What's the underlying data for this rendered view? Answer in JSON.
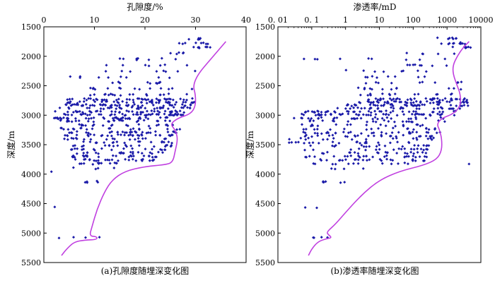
{
  "colors": {
    "points": "#1a1aa8",
    "curve": "#c040e0",
    "axis": "#000000"
  },
  "chart_data": [
    {
      "type": "scatter",
      "title": "孔隙度/%",
      "ylabel": "深度/m",
      "caption": "(a)孔隙度随埋深变化图",
      "x_scale": "linear",
      "xlim": [
        0,
        40
      ],
      "ylim": [
        1500,
        5500
      ],
      "y_inverted": true,
      "x_ticks": [
        0,
        10,
        20,
        30,
        40
      ],
      "x_tick_labels": [
        "0",
        "10",
        "20",
        "30",
        "40"
      ],
      "y_ticks": [
        1500,
        2000,
        2500,
        3000,
        3500,
        4000,
        4500,
        5000,
        5500
      ],
      "y_tick_labels": [
        "1500",
        "2000",
        "2500",
        "3000",
        "3500",
        "4000",
        "4500",
        "5000",
        "5500"
      ],
      "grid": false,
      "point_groups": [
        {
          "depth": 1700,
          "x_min": 28,
          "x_max": 32,
          "count": 6
        },
        {
          "depth": 1780,
          "x_min": 26,
          "x_max": 33,
          "count": 8
        },
        {
          "depth": 1850,
          "x_min": 29,
          "x_max": 33,
          "count": 8
        },
        {
          "depth": 1950,
          "x_min": 22,
          "x_max": 30,
          "count": 6
        },
        {
          "depth": 2050,
          "x_min": 10,
          "x_max": 30,
          "count": 8
        },
        {
          "depth": 2150,
          "x_min": 12,
          "x_max": 30,
          "count": 7
        },
        {
          "depth": 2250,
          "x_min": 12,
          "x_max": 30,
          "count": 8
        },
        {
          "depth": 2350,
          "x_min": 5,
          "x_max": 30,
          "count": 9
        },
        {
          "depth": 2450,
          "x_min": 8,
          "x_max": 30,
          "count": 10
        },
        {
          "depth": 2550,
          "x_min": 7,
          "x_max": 30,
          "count": 14
        },
        {
          "depth": 2650,
          "x_min": 7,
          "x_max": 30,
          "count": 18
        },
        {
          "depth": 2730,
          "x_min": 4,
          "x_max": 30,
          "count": 40
        },
        {
          "depth": 2780,
          "x_min": 4,
          "x_max": 30,
          "count": 40
        },
        {
          "depth": 2830,
          "x_min": 4,
          "x_max": 30,
          "count": 45
        },
        {
          "depth": 2880,
          "x_min": 3,
          "x_max": 30,
          "count": 35
        },
        {
          "depth": 2940,
          "x_min": 2,
          "x_max": 28,
          "count": 40
        },
        {
          "depth": 2990,
          "x_min": 2,
          "x_max": 28,
          "count": 45
        },
        {
          "depth": 3050,
          "x_min": 2,
          "x_max": 27,
          "count": 40
        },
        {
          "depth": 3100,
          "x_min": 3,
          "x_max": 26,
          "count": 25
        },
        {
          "depth": 3170,
          "x_min": 3,
          "x_max": 26,
          "count": 20
        },
        {
          "depth": 3230,
          "x_min": 3,
          "x_max": 27,
          "count": 20
        },
        {
          "depth": 3290,
          "x_min": 4,
          "x_max": 27,
          "count": 30
        },
        {
          "depth": 3340,
          "x_min": 4,
          "x_max": 27,
          "count": 30
        },
        {
          "depth": 3400,
          "x_min": 4,
          "x_max": 26,
          "count": 18
        },
        {
          "depth": 3460,
          "x_min": 4,
          "x_max": 26,
          "count": 18
        },
        {
          "depth": 3520,
          "x_min": 4,
          "x_max": 26,
          "count": 20
        },
        {
          "depth": 3580,
          "x_min": 5,
          "x_max": 25,
          "count": 18
        },
        {
          "depth": 3640,
          "x_min": 5,
          "x_max": 25,
          "count": 20
        },
        {
          "depth": 3700,
          "x_min": 5,
          "x_max": 24,
          "count": 25
        },
        {
          "depth": 3760,
          "x_min": 6,
          "x_max": 22,
          "count": 25
        },
        {
          "depth": 3820,
          "x_min": 6,
          "x_max": 18,
          "count": 12
        },
        {
          "depth": 3900,
          "x_min": 4,
          "x_max": 14,
          "count": 4
        },
        {
          "depth": 3970,
          "x_min": 1,
          "x_max": 2,
          "count": 1
        },
        {
          "depth": 4130,
          "x_min": 8,
          "x_max": 11,
          "count": 5
        },
        {
          "depth": 4570,
          "x_min": 2,
          "x_max": 2.3,
          "count": 1
        },
        {
          "depth": 5080,
          "x_min": 2,
          "x_max": 11,
          "count": 4
        }
      ],
      "trend_line": [
        {
          "x": 3.5,
          "y": 5380
        },
        {
          "x": 4.5,
          "y": 5270
        },
        {
          "x": 6,
          "y": 5150
        },
        {
          "x": 8,
          "y": 5120
        },
        {
          "x": 10.5,
          "y": 5110
        },
        {
          "x": 10.5,
          "y": 5060
        },
        {
          "x": 9,
          "y": 5050
        },
        {
          "x": 9.5,
          "y": 4900
        },
        {
          "x": 10.5,
          "y": 4600
        },
        {
          "x": 12,
          "y": 4300
        },
        {
          "x": 13.5,
          "y": 4100
        },
        {
          "x": 16,
          "y": 3950
        },
        {
          "x": 20,
          "y": 3870
        },
        {
          "x": 24,
          "y": 3840
        },
        {
          "x": 25.5,
          "y": 3800
        },
        {
          "x": 26,
          "y": 3600
        },
        {
          "x": 26.5,
          "y": 3400
        },
        {
          "x": 26,
          "y": 3250
        },
        {
          "x": 25,
          "y": 3150
        },
        {
          "x": 26.5,
          "y": 3050
        },
        {
          "x": 29,
          "y": 2980
        },
        {
          "x": 30,
          "y": 2850
        },
        {
          "x": 30,
          "y": 2650
        },
        {
          "x": 29.5,
          "y": 2500
        },
        {
          "x": 30.5,
          "y": 2300
        },
        {
          "x": 33,
          "y": 2050
        },
        {
          "x": 36,
          "y": 1750
        }
      ]
    },
    {
      "type": "scatter",
      "title": "渗透率/mD",
      "ylabel": "深度/m",
      "caption": "(b)渗透率随埋深变化图",
      "x_scale": "log",
      "xlim": [
        0.01,
        10000
      ],
      "ylim": [
        1500,
        5500
      ],
      "y_inverted": true,
      "x_ticks": [
        0.01,
        0.1,
        1,
        10,
        100,
        1000,
        10000
      ],
      "x_tick_labels": [
        "0. 01",
        "0. 1",
        "1",
        "10",
        "100",
        "1000",
        "10000"
      ],
      "y_ticks": [
        1500,
        2000,
        2500,
        3000,
        3500,
        4000,
        4500,
        5000,
        5500
      ],
      "y_tick_labels": [
        "1500",
        "2000",
        "2500",
        "3000",
        "3500",
        "4000",
        "4500",
        "5000",
        "5500"
      ],
      "grid": false,
      "point_groups": [
        {
          "depth": 1700,
          "x_min": 100,
          "x_max": 3000,
          "count": 7
        },
        {
          "depth": 1780,
          "x_min": 500,
          "x_max": 5000,
          "count": 10
        },
        {
          "depth": 1850,
          "x_min": 1000,
          "x_max": 5000,
          "count": 8
        },
        {
          "depth": 1950,
          "x_min": 50,
          "x_max": 2000,
          "count": 5
        },
        {
          "depth": 2050,
          "x_min": 0.05,
          "x_max": 1000,
          "count": 9
        },
        {
          "depth": 2150,
          "x_min": 3,
          "x_max": 1000,
          "count": 8
        },
        {
          "depth": 2250,
          "x_min": 1,
          "x_max": 1000,
          "count": 8
        },
        {
          "depth": 2350,
          "x_min": 0.5,
          "x_max": 1000,
          "count": 8
        },
        {
          "depth": 2450,
          "x_min": 1,
          "x_max": 3000,
          "count": 10
        },
        {
          "depth": 2550,
          "x_min": 1,
          "x_max": 3000,
          "count": 12
        },
        {
          "depth": 2650,
          "x_min": 2,
          "x_max": 3000,
          "count": 15
        },
        {
          "depth": 2730,
          "x_min": 3,
          "x_max": 5000,
          "count": 40
        },
        {
          "depth": 2780,
          "x_min": 2,
          "x_max": 5000,
          "count": 45
        },
        {
          "depth": 2830,
          "x_min": 1,
          "x_max": 5000,
          "count": 40
        },
        {
          "depth": 2880,
          "x_min": 0.5,
          "x_max": 3000,
          "count": 30
        },
        {
          "depth": 2940,
          "x_min": 0.05,
          "x_max": 2000,
          "count": 40
        },
        {
          "depth": 2990,
          "x_min": 0.05,
          "x_max": 2000,
          "count": 45
        },
        {
          "depth": 3050,
          "x_min": 0.03,
          "x_max": 1000,
          "count": 30
        },
        {
          "depth": 3100,
          "x_min": 0.05,
          "x_max": 1000,
          "count": 20
        },
        {
          "depth": 3170,
          "x_min": 0.05,
          "x_max": 700,
          "count": 18
        },
        {
          "depth": 3230,
          "x_min": 0.05,
          "x_max": 700,
          "count": 18
        },
        {
          "depth": 3300,
          "x_min": 0.03,
          "x_max": 700,
          "count": 30
        },
        {
          "depth": 3350,
          "x_min": 0.03,
          "x_max": 500,
          "count": 25
        },
        {
          "depth": 3400,
          "x_min": 0.02,
          "x_max": 500,
          "count": 18
        },
        {
          "depth": 3460,
          "x_min": 0.01,
          "x_max": 500,
          "count": 22
        },
        {
          "depth": 3520,
          "x_min": 0.05,
          "x_max": 300,
          "count": 18
        },
        {
          "depth": 3580,
          "x_min": 0.05,
          "x_max": 300,
          "count": 18
        },
        {
          "depth": 3640,
          "x_min": 0.1,
          "x_max": 300,
          "count": 20
        },
        {
          "depth": 3700,
          "x_min": 0.05,
          "x_max": 300,
          "count": 25
        },
        {
          "depth": 3760,
          "x_min": 0.1,
          "x_max": 300,
          "count": 25
        },
        {
          "depth": 3820,
          "x_min": 0.1,
          "x_max": 100,
          "count": 12
        },
        {
          "depth": 3830,
          "x_min": 4000,
          "x_max": 5000,
          "count": 1
        },
        {
          "depth": 3900,
          "x_min": 0.1,
          "x_max": 10,
          "count": 4
        },
        {
          "depth": 4130,
          "x_min": 0.2,
          "x_max": 1,
          "count": 6
        },
        {
          "depth": 4570,
          "x_min": 0.05,
          "x_max": 0.2,
          "count": 2
        },
        {
          "depth": 5080,
          "x_min": 0.05,
          "x_max": 0.5,
          "count": 4
        }
      ],
      "trend_line": [
        {
          "x": 0.08,
          "y": 5380
        },
        {
          "x": 0.1,
          "y": 5270
        },
        {
          "x": 0.15,
          "y": 5150
        },
        {
          "x": 0.25,
          "y": 5100
        },
        {
          "x": 0.4,
          "y": 5080
        },
        {
          "x": 0.3,
          "y": 5020
        },
        {
          "x": 0.28,
          "y": 4980
        },
        {
          "x": 0.5,
          "y": 4850
        },
        {
          "x": 1,
          "y": 4650
        },
        {
          "x": 3,
          "y": 4350
        },
        {
          "x": 10,
          "y": 4100
        },
        {
          "x": 40,
          "y": 3950
        },
        {
          "x": 200,
          "y": 3850
        },
        {
          "x": 500,
          "y": 3750
        },
        {
          "x": 700,
          "y": 3600
        },
        {
          "x": 700,
          "y": 3400
        },
        {
          "x": 600,
          "y": 3250
        },
        {
          "x": 500,
          "y": 3150
        },
        {
          "x": 700,
          "y": 3050
        },
        {
          "x": 1500,
          "y": 2980
        },
        {
          "x": 2500,
          "y": 2850
        },
        {
          "x": 2500,
          "y": 2650
        },
        {
          "x": 2000,
          "y": 2500
        },
        {
          "x": 1500,
          "y": 2300
        },
        {
          "x": 1500,
          "y": 2150
        },
        {
          "x": 2000,
          "y": 2000
        },
        {
          "x": 3000,
          "y": 1850
        },
        {
          "x": 4500,
          "y": 1750
        }
      ]
    }
  ]
}
